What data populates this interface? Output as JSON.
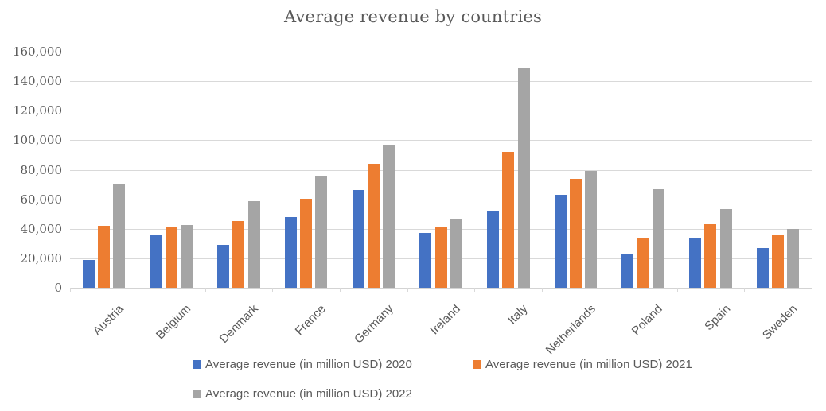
{
  "title": "Average revenue by countries",
  "colors": {
    "series_2020": "#4472C4",
    "series_2021": "#ED7D31",
    "series_2022": "#A5A5A5",
    "text": "#595959",
    "gridline": "#D9D9D9"
  },
  "chart_data": {
    "type": "bar",
    "title": "Average revenue by countries",
    "categories": [
      "Austria",
      "Belgium",
      "Denmark",
      "France",
      "Germany",
      "Ireland",
      "Italy",
      "Netherlands",
      "Poland",
      "Spain",
      "Sweden"
    ],
    "series": [
      {
        "name": "Average revenue (in million USD) 2020",
        "color": "#4472C4",
        "values": [
          19000,
          35500,
          29000,
          48000,
          66500,
          37000,
          51500,
          63000,
          22500,
          33500,
          27000
        ]
      },
      {
        "name": "Average revenue (in million USD) 2021",
        "color": "#ED7D31",
        "values": [
          42000,
          41000,
          45500,
          60500,
          84000,
          41000,
          92000,
          74000,
          34000,
          43000,
          35500
        ]
      },
      {
        "name": "Average revenue (in million USD) 2022",
        "color": "#A5A5A5",
        "values": [
          70000,
          42500,
          59000,
          76000,
          97000,
          46500,
          149000,
          79000,
          67000,
          53500,
          40000
        ]
      }
    ],
    "xlabel": "",
    "ylabel": "",
    "ylim": [
      0,
      160000
    ],
    "y_tick_step": 20000,
    "y_tick_labels": [
      "0",
      "20,000",
      "40,000",
      "60,000",
      "80,000",
      "100,000",
      "120,000",
      "140,000",
      "160,000"
    ],
    "grid": true,
    "legend_position": "bottom"
  }
}
